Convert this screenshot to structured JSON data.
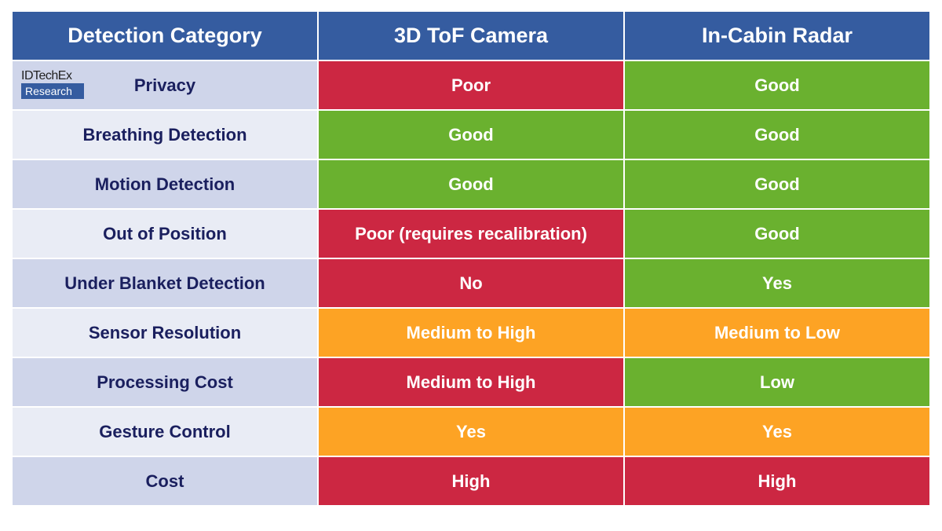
{
  "colors": {
    "header": "#355ca0",
    "poor": "#cc2742",
    "good": "#6ab12f",
    "medium": "#fda324"
  },
  "logo": {
    "line1": "IDTechEx",
    "line2": "Research"
  },
  "headers": [
    "Detection Category",
    "3D ToF Camera",
    "In-Cabin Radar"
  ],
  "rows": [
    {
      "category": "Privacy",
      "tof": "Poor",
      "tof_rating": "poor",
      "radar": "Good",
      "radar_rating": "good"
    },
    {
      "category": "Breathing Detection",
      "tof": "Good",
      "tof_rating": "good",
      "radar": "Good",
      "radar_rating": "good"
    },
    {
      "category": "Motion Detection",
      "tof": "Good",
      "tof_rating": "good",
      "radar": "Good",
      "radar_rating": "good"
    },
    {
      "category": "Out of Position",
      "tof": "Poor (requires recalibration)",
      "tof_rating": "poor",
      "radar": "Good",
      "radar_rating": "good"
    },
    {
      "category": "Under Blanket Detection",
      "tof": "No",
      "tof_rating": "poor",
      "radar": "Yes",
      "radar_rating": "good"
    },
    {
      "category": "Sensor Resolution",
      "tof": "Medium to High",
      "tof_rating": "medium",
      "radar": "Medium to Low",
      "radar_rating": "medium"
    },
    {
      "category": "Processing Cost",
      "tof": "Medium to High",
      "tof_rating": "poor",
      "radar": "Low",
      "radar_rating": "good"
    },
    {
      "category": "Gesture Control",
      "tof": "Yes",
      "tof_rating": "medium",
      "radar": "Yes",
      "radar_rating": "medium"
    },
    {
      "category": "Cost",
      "tof": "High",
      "tof_rating": "poor",
      "radar": "High",
      "radar_rating": "poor"
    }
  ]
}
